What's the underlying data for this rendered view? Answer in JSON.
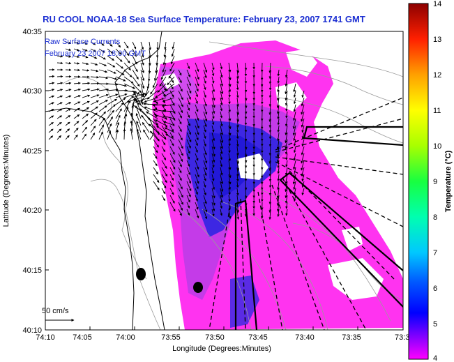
{
  "title": "RU COOL  NOAA-18  Sea Surface Temperature:  February 23, 2007 1741 GMT",
  "overlay": {
    "line1": "Raw Surface Currents",
    "line2": "February 23 2007 18:00 GMT"
  },
  "axes": {
    "xlabel": "Longitude (Degrees:Minutes)",
    "ylabel": "Latitude (Degrees:Minutes)",
    "x_ticks": [
      "74:10",
      "74:05",
      "74:00",
      "73:55",
      "73:50",
      "73:45",
      "73:40",
      "73:35",
      "73:3"
    ],
    "y_ticks": [
      "40:35",
      "40:30",
      "40:25",
      "40:20",
      "40:15",
      "40:10"
    ]
  },
  "scale_label": "50 cm/s",
  "colorbar": {
    "label": "Temperature (°C)",
    "ticks": [
      "14",
      "13",
      "12",
      "11",
      "10",
      "9",
      "8",
      "7",
      "6",
      "5",
      "4"
    ],
    "min": 4,
    "max": 14
  },
  "colors": {
    "title": "#1c2fd2",
    "sst_warm": "#ff2cf0",
    "sst_mid": "#c42ee6",
    "sst_cool": "#2b22e6"
  }
}
